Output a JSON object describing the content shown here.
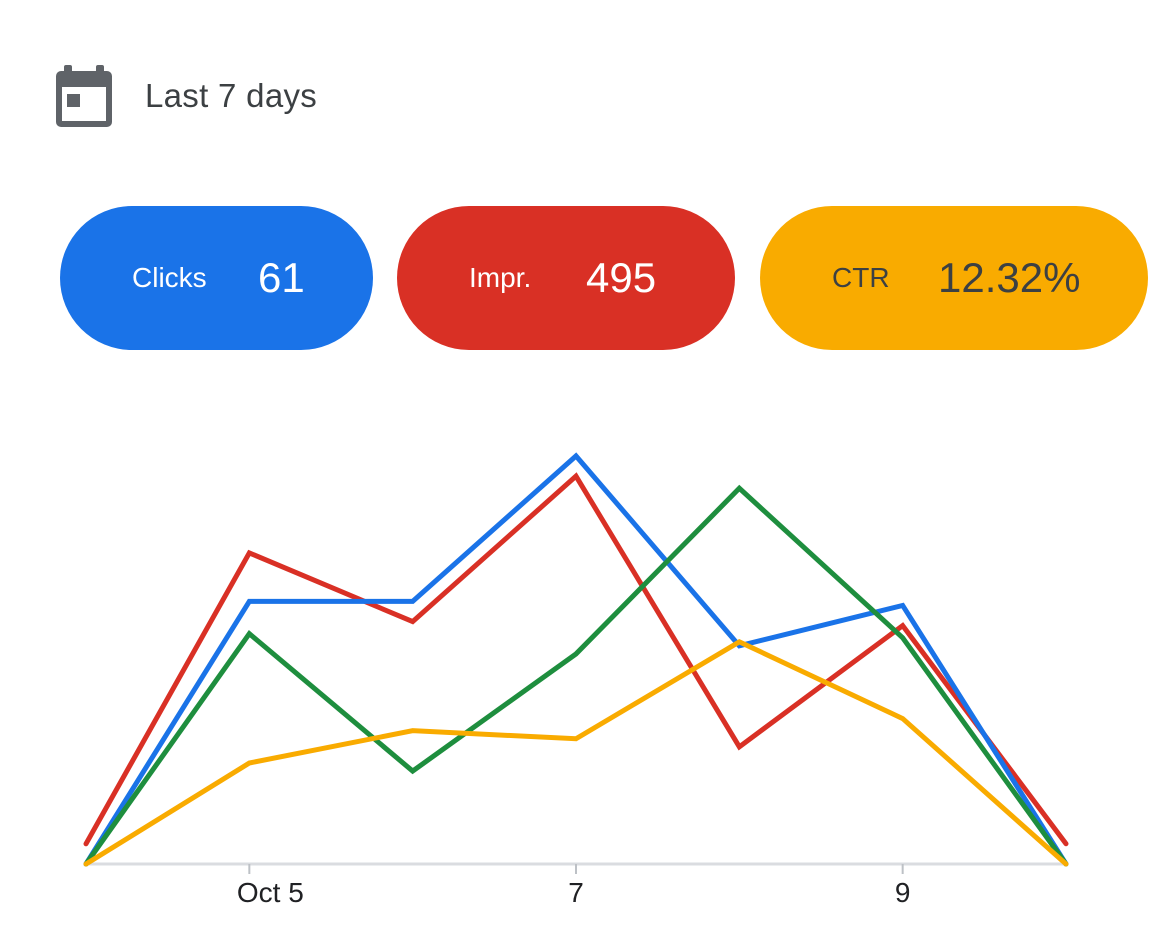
{
  "header": {
    "icon": "calendar-icon",
    "range_label": "Last 7 days"
  },
  "metrics": {
    "clicks": {
      "label": "Clicks",
      "value": "61",
      "color": "#1a73e8"
    },
    "impressions": {
      "label": "Impr.",
      "value": "495",
      "color": "#d93025"
    },
    "ctr": {
      "label": "CTR",
      "value": "12.32%",
      "color": "#f9ab00"
    }
  },
  "chart_data": {
    "type": "line",
    "x": [
      0,
      1,
      2,
      3,
      4,
      5,
      6
    ],
    "x_tick_labels": [
      "",
      "Oct 5",
      "",
      "7",
      "",
      "9",
      ""
    ],
    "ylim": [
      0,
      100
    ],
    "grid": false,
    "legend": "none",
    "series": [
      {
        "color": "#d93025",
        "values": [
          5,
          77,
          60,
          96,
          29,
          59,
          5
        ]
      },
      {
        "color": "#1a73e8",
        "values": [
          0,
          65,
          65,
          101,
          54,
          64,
          0
        ]
      },
      {
        "color": "#1e8e3e",
        "values": [
          0,
          57,
          23,
          52,
          93,
          56,
          0
        ]
      },
      {
        "color": "#f9ab00",
        "values": [
          0,
          25,
          33,
          31,
          55,
          36,
          0
        ]
      }
    ]
  }
}
